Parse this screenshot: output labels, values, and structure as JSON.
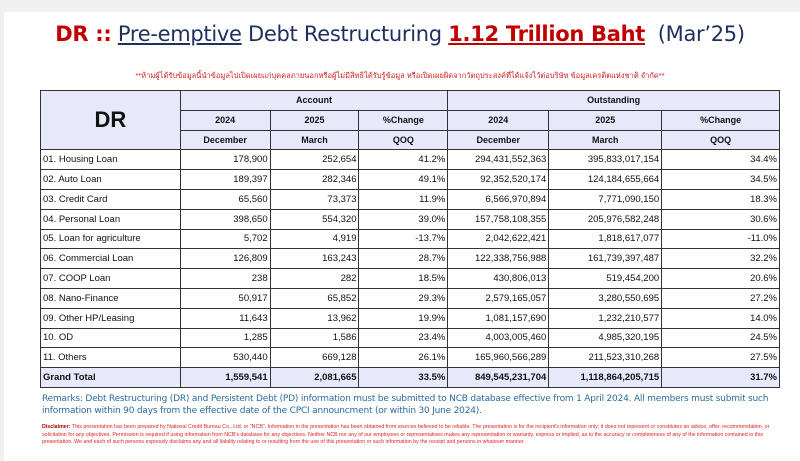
{
  "title": {
    "prefix": "DR ::",
    "underlined": "Pre-emptive",
    "middle": "Debt Restructuring",
    "amount": "1.12 Trillion Baht",
    "period": "(Mar’25)"
  },
  "notice": "**ห้ามผู้ได้รับข้อมูลนี้นำข้อมูลไปเปิดเผยแก่บุคคลภายนอกหรือผู้ไม่มีสิทธิได้รับรู้ข้อมูล หรือเปิดเผยผิดจากวัตถุประสงค์ที่ได้แจ้งไว้ต่อบริษัท ข้อมูลเครดิตแห่งชาติ จำกัด**",
  "table": {
    "corner": "DR",
    "groups": [
      "Account",
      "Outstanding"
    ],
    "years": [
      "2024",
      "2025",
      "%Change",
      "2024",
      "2025",
      "%Change"
    ],
    "months": [
      "December",
      "March",
      "QOQ",
      "December",
      "March",
      "QOQ"
    ],
    "rows": [
      [
        "01. Housing Loan",
        "178,900",
        "252,654",
        "41.2%",
        "294,431,552,363",
        "395,833,017,154",
        "34.4%"
      ],
      [
        "02. Auto Loan",
        "189,397",
        "282,346",
        "49.1%",
        "92,352,520,174",
        "124,184,655,664",
        "34.5%"
      ],
      [
        "03. Credit Card",
        "65,560",
        "73,373",
        "11.9%",
        "6,566,970,894",
        "7,771,090,150",
        "18.3%"
      ],
      [
        "04. Personal Loan",
        "398,650",
        "554,320",
        "39.0%",
        "157,758,108,355",
        "205,976,582,248",
        "30.6%"
      ],
      [
        "05. Loan for agriculture",
        "5,702",
        "4,919",
        "-13.7%",
        "2,042,622,421",
        "1,818,617,077",
        "-11.0%"
      ],
      [
        "06. Commercial Loan",
        "126,809",
        "163,243",
        "28.7%",
        "122,338,756,988",
        "161,739,397,487",
        "32.2%"
      ],
      [
        "07. COOP Loan",
        "238",
        "282",
        "18.5%",
        "430,806,013",
        "519,454,200",
        "20.6%"
      ],
      [
        "08. Nano-Finance",
        "50,917",
        "65,852",
        "29.3%",
        "2,579,165,057",
        "3,280,550,695",
        "27.2%"
      ],
      [
        "09. Other HP/Leasing",
        "11,643",
        "13,962",
        "19.9%",
        "1,081,157,690",
        "1,232,210,577",
        "14.0%"
      ],
      [
        "10. OD",
        "1,285",
        "1,586",
        "23.4%",
        "4,003,005,460",
        "4,985,320,195",
        "24.5%"
      ],
      [
        "11. Others",
        "530,440",
        "669,128",
        "26.1%",
        "165,960,566,289",
        "211,523,310,268",
        "27.5%"
      ]
    ],
    "total": [
      "Grand Total",
      "1,559,541",
      "2,081,665",
      "33.5%",
      "849,545,231,704",
      "1,118,864,205,715",
      "31.7%"
    ]
  },
  "remarks": "Remarks: Debt Restructuring (DR) and Persistent Debt (PD) information must be submitted to NCB database effective from 1 April 2024. All members must submit such information within 90 days from the effective date of the CPCI announcment (or within 30 June 2024).",
  "disclaimer": {
    "label": "Disclaimer:",
    "text": "This presentation has been prepared by National Credit Bureau Co., Ltd. or \"NCB\". Information in the presentation has been obtained from sources believed to be reliable. The presentation is for the recipient's information only; it does not represent or constitutes an advice, offer, recommendation, or solicitation for any objectives. Permission is required if using information from NCB's database for any objectives. Neither NCB nor any of our employees or representatives makes any representation or warranty, express or implied, as to the accuracy or completeness of any of the information contained in this presentation. We and each of such persons expressly disclaims any and all liability relating to or resulting from the use of this presentation or such information by the receipt and persons in whatever manner."
  }
}
